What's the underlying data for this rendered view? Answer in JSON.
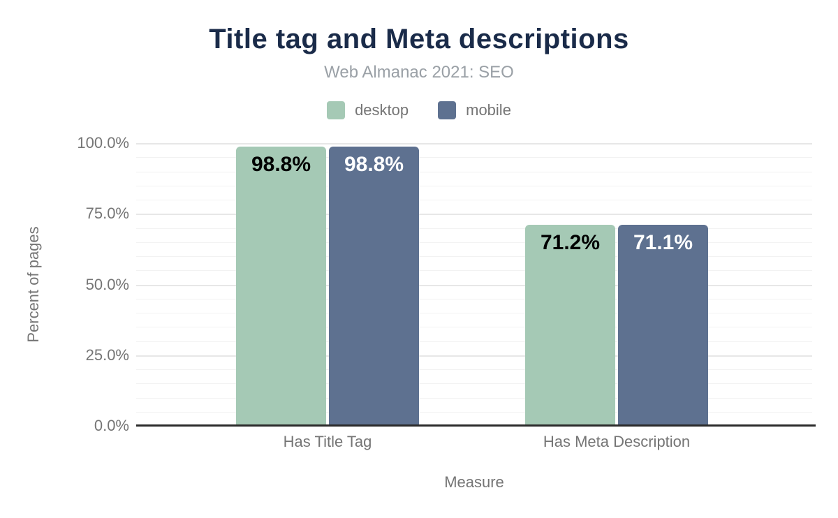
{
  "chart_data": {
    "type": "bar",
    "title": "Title tag and Meta descriptions",
    "subtitle": "Web Almanac 2021: SEO",
    "xlabel": "Measure",
    "ylabel": "Percent of pages",
    "categories": [
      "Has Title Tag",
      "Has Meta Description"
    ],
    "series": [
      {
        "name": "desktop",
        "color": "#a5c9b5",
        "values": [
          98.8,
          71.2
        ],
        "labels": [
          "98.8%",
          "71.2%"
        ],
        "label_color": "#000000"
      },
      {
        "name": "mobile",
        "color": "#5e7190",
        "values": [
          98.8,
          71.1
        ],
        "labels": [
          "98.8%",
          "71.1%"
        ],
        "label_color": "#ffffff"
      }
    ],
    "ylim": [
      0,
      100
    ],
    "yticks": [
      {
        "value": 0,
        "label": "0.0%"
      },
      {
        "value": 25,
        "label": "25.0%"
      },
      {
        "value": 50,
        "label": "50.0%"
      },
      {
        "value": 75,
        "label": "75.0%"
      },
      {
        "value": 100,
        "label": "100.0%"
      }
    ],
    "grid": {
      "minor_step": 5,
      "major_step": 25,
      "grid_on": true
    },
    "legend_position": "top"
  },
  "colors": {
    "background": "#ffffff",
    "title": "#1a2b49",
    "subtitle": "#9aa0a6",
    "axis_text": "#757575",
    "axis_line": "#2b2b2b",
    "grid_minor": "#f2f2f2",
    "grid_major": "#e7e7e7"
  }
}
